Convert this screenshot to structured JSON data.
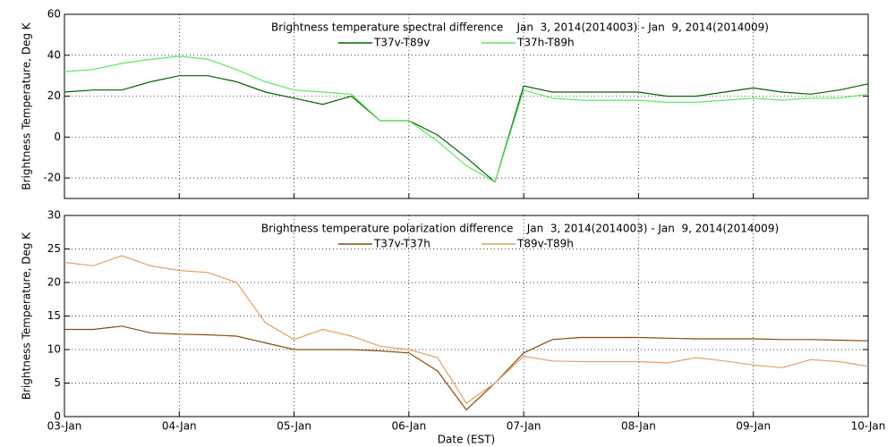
{
  "chart_data": [
    {
      "type": "line",
      "title": "Brightness temperature spectral difference    Jan  3, 2014(2014003) - Jan  9, 2014(2014009)",
      "y_label": "Brightness Temperature, Deg K",
      "x": [
        0,
        0.25,
        0.5,
        0.75,
        1,
        1.25,
        1.5,
        1.75,
        2,
        2.25,
        2.5,
        2.75,
        3,
        3.25,
        3.5,
        3.75,
        4,
        4.25,
        4.5,
        4.75,
        5,
        5.25,
        5.5,
        5.75,
        6,
        6.25,
        6.5,
        6.75,
        7
      ],
      "xlim": [
        0,
        7
      ],
      "xticks": [
        0,
        1,
        2,
        3,
        4,
        5,
        6,
        7
      ],
      "ylim": [
        -30,
        60
      ],
      "yticks": [
        -20,
        0,
        20,
        40,
        60
      ],
      "grid": true,
      "series": [
        {
          "name": "T37v-T89v",
          "color": "#006400",
          "values": [
            22,
            23,
            23,
            27,
            30,
            30,
            27,
            22,
            19,
            16,
            20,
            8,
            8,
            1,
            -10,
            -22,
            25,
            22,
            22,
            22,
            22,
            20,
            20,
            22,
            24,
            22,
            21,
            23,
            26
          ]
        },
        {
          "name": "T37h-T89h",
          "color": "#5ee85e",
          "values": [
            32,
            33,
            36,
            38,
            39.5,
            38,
            33,
            27,
            23,
            22,
            21,
            8,
            8,
            -2,
            -14,
            -22,
            23,
            19,
            18,
            18,
            18,
            17,
            17,
            18,
            19,
            18,
            19,
            19,
            21
          ]
        }
      ]
    },
    {
      "type": "line",
      "title": "Brightness temperature polarization difference    Jan  3, 2014(2014003) - Jan  9, 2014(2014009)",
      "y_label": "Brightness Temperature, Deg K",
      "x_label": "Date (EST)",
      "x": [
        0,
        0.25,
        0.5,
        0.75,
        1,
        1.25,
        1.5,
        1.75,
        2,
        2.25,
        2.5,
        2.75,
        3,
        3.25,
        3.5,
        3.75,
        4,
        4.25,
        4.5,
        4.75,
        5,
        5.25,
        5.5,
        5.75,
        6,
        6.25,
        6.5,
        6.75,
        7
      ],
      "xlim": [
        0,
        7
      ],
      "xticks": [
        {
          "value": 0,
          "label": "03-Jan"
        },
        {
          "value": 1,
          "label": "04-Jan"
        },
        {
          "value": 2,
          "label": "05-Jan"
        },
        {
          "value": 3,
          "label": "06-Jan"
        },
        {
          "value": 4,
          "label": "07-Jan"
        },
        {
          "value": 5,
          "label": "08-Jan"
        },
        {
          "value": 6,
          "label": "09-Jan"
        },
        {
          "value": 7,
          "label": "10-Jan"
        }
      ],
      "ylim": [
        0,
        30
      ],
      "yticks": [
        0,
        5,
        10,
        15,
        20,
        25,
        30
      ],
      "grid": true,
      "series": [
        {
          "name": "T37v-T37h",
          "color": "#8b4a0a",
          "values": [
            13,
            13,
            13.5,
            12.5,
            12.3,
            12.2,
            12,
            11,
            10,
            10,
            10,
            9.8,
            9.5,
            6.8,
            1,
            5,
            9.5,
            11.5,
            11.8,
            11.8,
            11.8,
            11.7,
            11.6,
            11.6,
            11.6,
            11.5,
            11.5,
            11.4,
            11.3
          ]
        },
        {
          "name": "T89v-T89h",
          "color": "#e8a060",
          "values": [
            23,
            22.5,
            24,
            22.5,
            21.8,
            21.5,
            20,
            14,
            11.5,
            13,
            12,
            10.5,
            10,
            8.8,
            2,
            5,
            9,
            8.3,
            8.2,
            8.2,
            8.2,
            8,
            8.8,
            8.3,
            7.7,
            7.3,
            8.5,
            8.2,
            7.5
          ]
        }
      ]
    }
  ]
}
